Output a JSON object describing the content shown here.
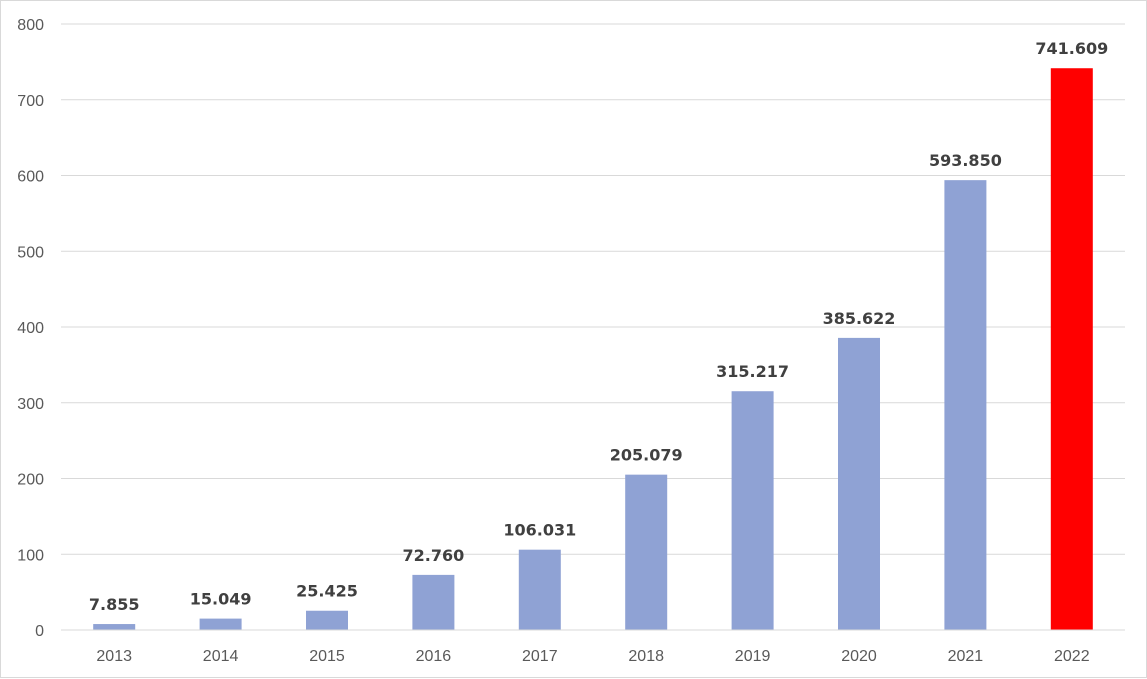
{
  "chart_data": {
    "type": "bar",
    "title": "",
    "xlabel": "",
    "ylabel": "",
    "categories": [
      "2013",
      "2014",
      "2015",
      "2016",
      "2017",
      "2018",
      "2019",
      "2020",
      "2021",
      "2022"
    ],
    "values": [
      7.855,
      15.049,
      25.425,
      72.76,
      106.031,
      205.079,
      315.217,
      385.622,
      593.85,
      741.609
    ],
    "value_labels": [
      "7.855",
      "15.049",
      "25.425",
      "72.760",
      "106.031",
      "205.079",
      "315.217",
      "385.622",
      "593.850",
      "741.609"
    ],
    "ylim": [
      0,
      800
    ],
    "yticks": [
      0,
      100,
      200,
      300,
      400,
      500,
      600,
      700,
      800
    ],
    "grid": true,
    "legend": "none",
    "colors": {
      "bar": "#8fa2d4",
      "highlight": "#ff0000",
      "grid": "#d9d9d9",
      "axis": "#d9d9d9"
    },
    "highlight_index": 9
  }
}
